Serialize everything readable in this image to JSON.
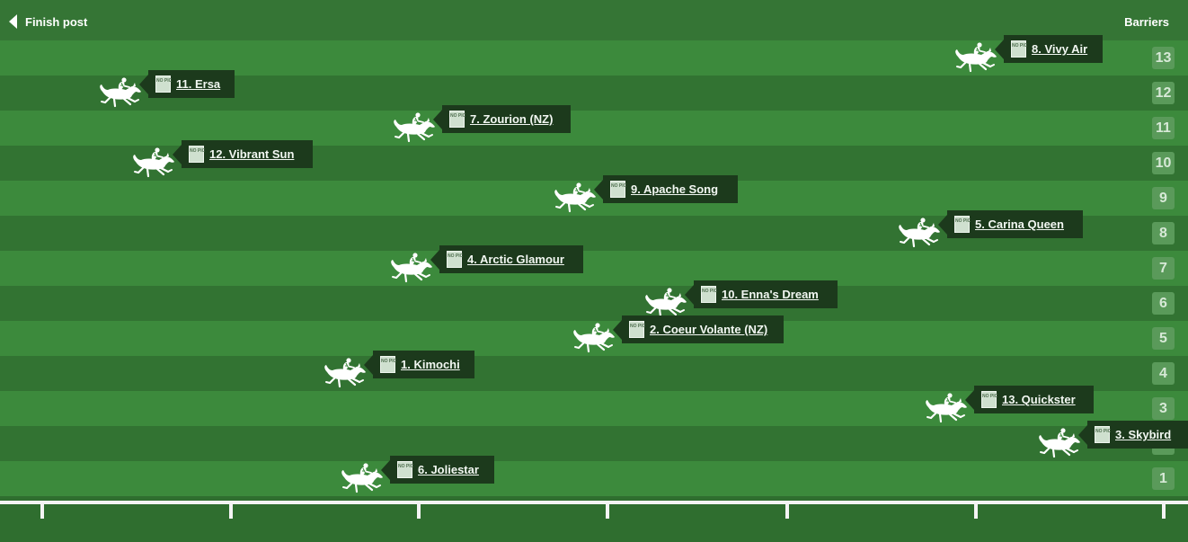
{
  "header": {
    "finish_label": "Finish post",
    "barriers_label": "Barriers"
  },
  "barrier_numbers": [
    "13",
    "12",
    "11",
    "10",
    "9",
    "8",
    "7",
    "6",
    "5",
    "4",
    "3",
    "2",
    "1"
  ],
  "silk_placeholder": "NO PIC",
  "runners": [
    {
      "barrier": 13,
      "name": "8. Vivy Air"
    },
    {
      "barrier": 12,
      "name": "11. Ersa"
    },
    {
      "barrier": 11,
      "name": "7. Zourion (NZ)"
    },
    {
      "barrier": 10,
      "name": "12. Vibrant Sun"
    },
    {
      "barrier": 9,
      "name": "9. Apache Song"
    },
    {
      "barrier": 8,
      "name": "5. Carina Queen"
    },
    {
      "barrier": 7,
      "name": "4. Arctic Glamour"
    },
    {
      "barrier": 6,
      "name": "10. Enna's Dream"
    },
    {
      "barrier": 5,
      "name": "2. Coeur Volante (NZ)"
    },
    {
      "barrier": 4,
      "name": "1. Kimochi"
    },
    {
      "barrier": 3,
      "name": "13. Quickster"
    },
    {
      "barrier": 2,
      "name": "3. Skybird"
    },
    {
      "barrier": 1,
      "name": "6. Joliestar"
    }
  ],
  "colors": {
    "lane_light": "#3c8a3c",
    "lane_dark": "#327332",
    "label_bg": "#1c3a1c"
  },
  "icons": {
    "back": "caret-left-icon",
    "runner": "horse-jockey-icon"
  }
}
